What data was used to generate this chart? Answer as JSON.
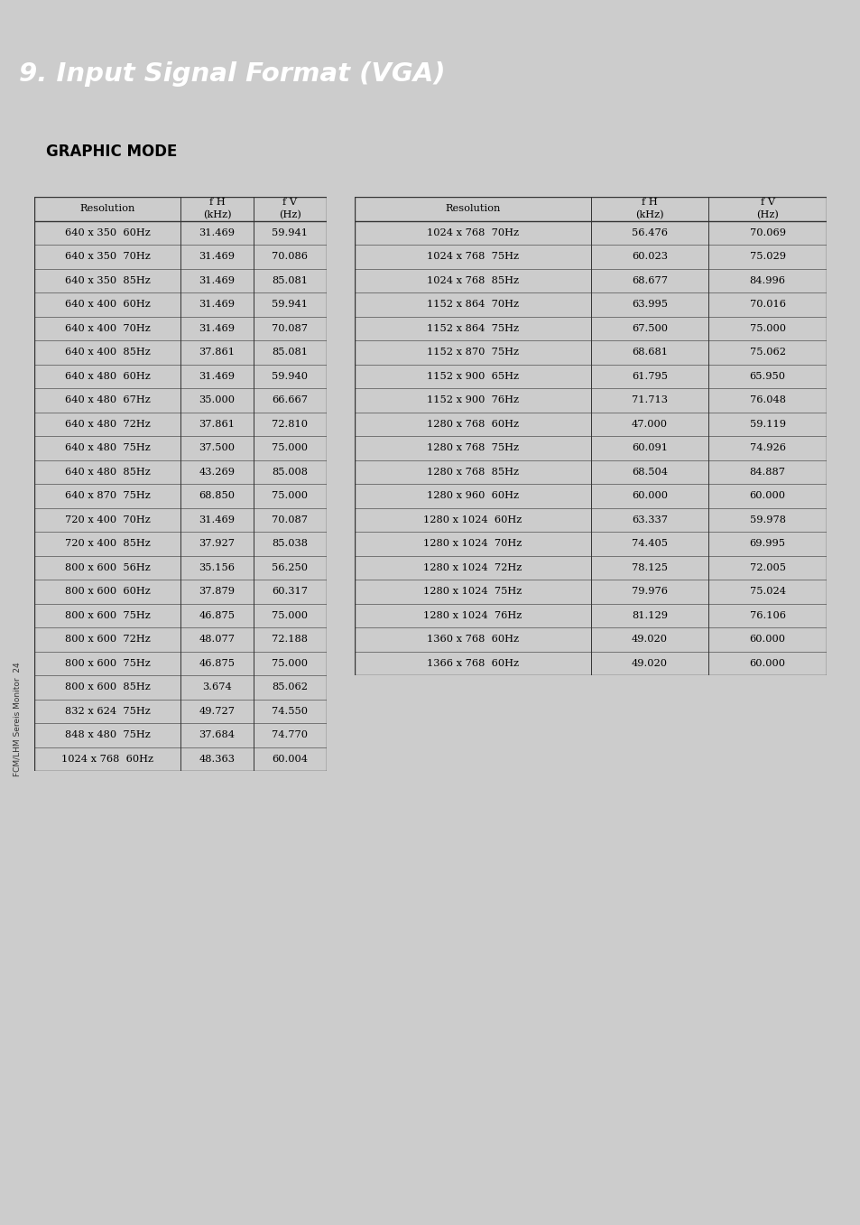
{
  "title": "9. Input Signal Format (VGA)",
  "section": "GRAPHIC MODE",
  "title_bg": "#1e3f6e",
  "title_fg": "#ffffff",
  "section_bg": "#7ec8e3",
  "section_fg": "#000000",
  "page_bg": "#cccccc",
  "content_bg": "#ffffff",
  "sidebar_text": "FCM/LHM Sereis Monitor  24",
  "left_table": {
    "headers": [
      "Resolution",
      "f H\n(kHz)",
      "f V\n(Hz)"
    ],
    "rows": [
      [
        "640 x 350  60Hz",
        "31.469",
        "59.941"
      ],
      [
        "640 x 350  70Hz",
        "31.469",
        "70.086"
      ],
      [
        "640 x 350  85Hz",
        "31.469",
        "85.081"
      ],
      [
        "640 x 400  60Hz",
        "31.469",
        "59.941"
      ],
      [
        "640 x 400  70Hz",
        "31.469",
        "70.087"
      ],
      [
        "640 x 400  85Hz",
        "37.861",
        "85.081"
      ],
      [
        "640 x 480  60Hz",
        "31.469",
        "59.940"
      ],
      [
        "640 x 480  67Hz",
        "35.000",
        "66.667"
      ],
      [
        "640 x 480  72Hz",
        "37.861",
        "72.810"
      ],
      [
        "640 x 480  75Hz",
        "37.500",
        "75.000"
      ],
      [
        "640 x 480  85Hz",
        "43.269",
        "85.008"
      ],
      [
        "640 x 870  75Hz",
        "68.850",
        "75.000"
      ],
      [
        "720 x 400  70Hz",
        "31.469",
        "70.087"
      ],
      [
        "720 x 400  85Hz",
        "37.927",
        "85.038"
      ],
      [
        "800 x 600  56Hz",
        "35.156",
        "56.250"
      ],
      [
        "800 x 600  60Hz",
        "37.879",
        "60.317"
      ],
      [
        "800 x 600  75Hz",
        "46.875",
        "75.000"
      ],
      [
        "800 x 600  72Hz",
        "48.077",
        "72.188"
      ],
      [
        "800 x 600  75Hz",
        "46.875",
        "75.000"
      ],
      [
        "800 x 600  85Hz",
        "3.674",
        "85.062"
      ],
      [
        "832 x 624  75Hz",
        "49.727",
        "74.550"
      ],
      [
        "848 x 480  75Hz",
        "37.684",
        "74.770"
      ],
      [
        "1024 x 768  60Hz",
        "48.363",
        "60.004"
      ]
    ]
  },
  "right_table": {
    "headers": [
      "Resolution",
      "f H\n(kHz)",
      "f V\n(Hz)"
    ],
    "rows": [
      [
        "1024 x 768  70Hz",
        "56.476",
        "70.069"
      ],
      [
        "1024 x 768  75Hz",
        "60.023",
        "75.029"
      ],
      [
        "1024 x 768  85Hz",
        "68.677",
        "84.996"
      ],
      [
        "1152 x 864  70Hz",
        "63.995",
        "70.016"
      ],
      [
        "1152 x 864  75Hz",
        "67.500",
        "75.000"
      ],
      [
        "1152 x 870  75Hz",
        "68.681",
        "75.062"
      ],
      [
        "1152 x 900  65Hz",
        "61.795",
        "65.950"
      ],
      [
        "1152 x 900  76Hz",
        "71.713",
        "76.048"
      ],
      [
        "1280 x 768  60Hz",
        "47.000",
        "59.119"
      ],
      [
        "1280 x 768  75Hz",
        "60.091",
        "74.926"
      ],
      [
        "1280 x 768  85Hz",
        "68.504",
        "84.887"
      ],
      [
        "1280 x 960  60Hz",
        "60.000",
        "60.000"
      ],
      [
        "1280 x 1024  60Hz",
        "63.337",
        "59.978"
      ],
      [
        "1280 x 1024  70Hz",
        "74.405",
        "69.995"
      ],
      [
        "1280 x 1024  72Hz",
        "78.125",
        "72.005"
      ],
      [
        "1280 x 1024  75Hz",
        "79.976",
        "75.024"
      ],
      [
        "1280 x 1024  76Hz",
        "81.129",
        "76.106"
      ],
      [
        "1360 x 768  60Hz",
        "49.020",
        "60.000"
      ],
      [
        "1366 x 768  60Hz",
        "49.020",
        "60.000"
      ]
    ]
  }
}
